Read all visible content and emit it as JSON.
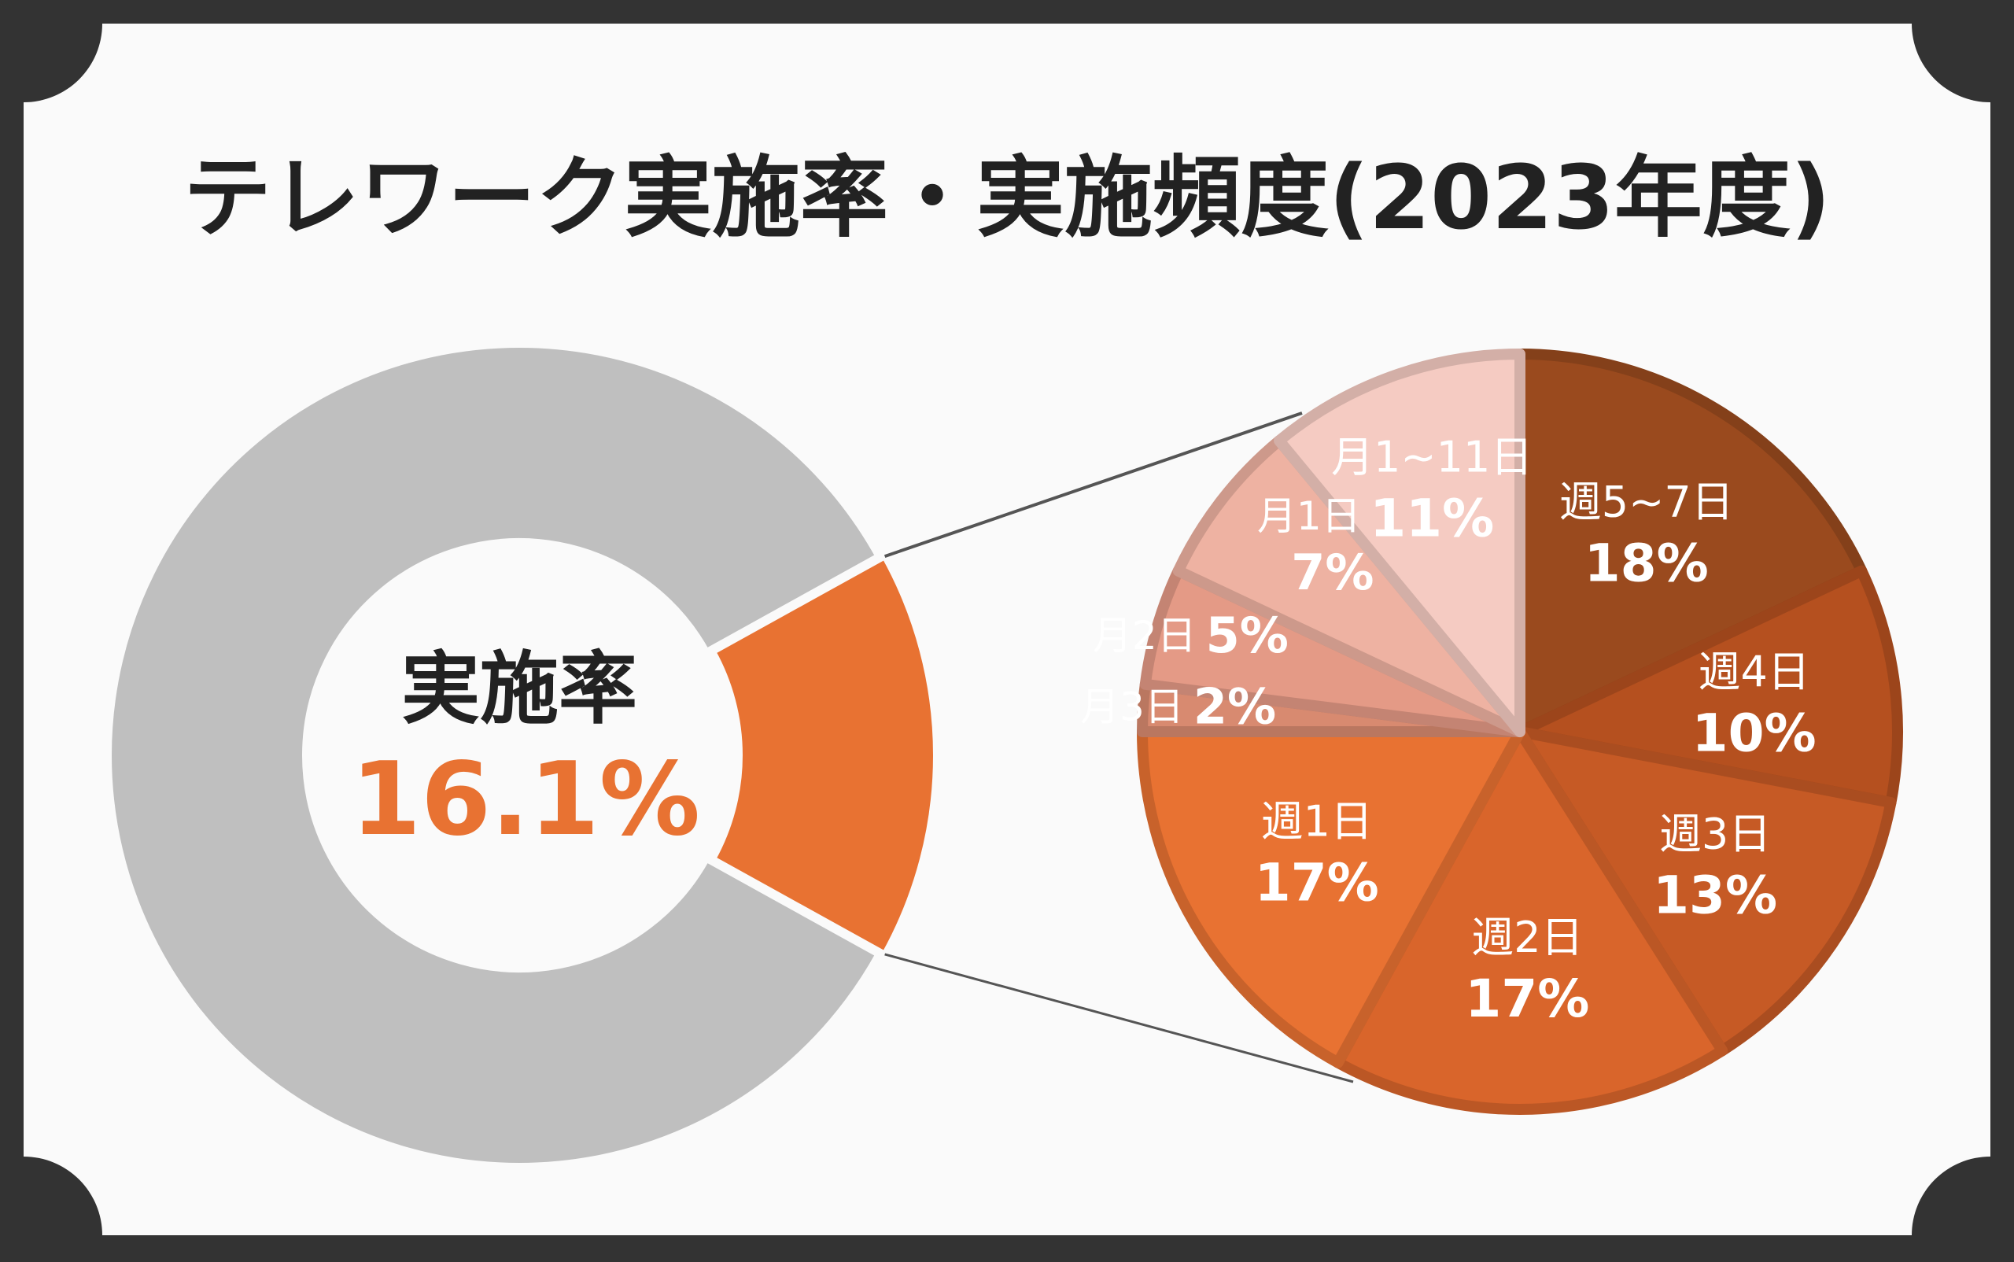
{
  "title": "テレワーク実施率・実施頻度(2023年度)",
  "colors": {
    "frame": "#333333",
    "background": "#fafafa",
    "donut_rest": "#bfbfbf",
    "accent": "#e87232",
    "title_text": "#222222"
  },
  "chart_data": [
    {
      "type": "pie",
      "variant": "donut",
      "center_label": "実施率",
      "center_value": "16.1%",
      "slices": [
        {
          "name": "実施",
          "value": 16.1,
          "color": "#e87232"
        },
        {
          "name": "",
          "value": 83.9,
          "color": "#bfbfbf"
        }
      ]
    },
    {
      "type": "pie",
      "start": "12 o'clock",
      "direction": "clockwise",
      "slices": [
        {
          "name": "週5~7日",
          "value": 18,
          "label": "18%",
          "color": "#9a4a1e"
        },
        {
          "name": "週4日",
          "value": 10,
          "label": "10%",
          "color": "#b5501f"
        },
        {
          "name": "週3日",
          "value": 13,
          "label": "13%",
          "color": "#c65a25"
        },
        {
          "name": "週2日",
          "value": 17,
          "label": "17%",
          "color": "#d9652b"
        },
        {
          "name": "週1日",
          "value": 17,
          "label": "17%",
          "color": "#e87232"
        },
        {
          "name": "月3日",
          "value": 2,
          "label": "2%",
          "color": "#d88a70"
        },
        {
          "name": "月2日",
          "value": 5,
          "label": "5%",
          "color": "#e49a86"
        },
        {
          "name": "月1日",
          "value": 7,
          "label": "7%",
          "color": "#eeb2a2"
        },
        {
          "name": "月1~11日",
          "value": 11,
          "label": "11%",
          "color": "#f5cbc2"
        }
      ]
    }
  ]
}
